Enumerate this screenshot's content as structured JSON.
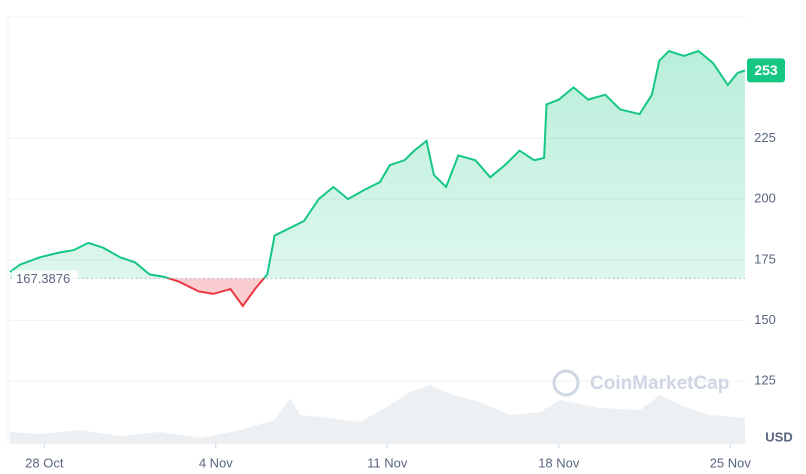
{
  "chart_data": {
    "type": "line",
    "x": [
      -1.4,
      -1.0,
      -0.2,
      0.6,
      1.2,
      1.8,
      2.4,
      3.1,
      3.7,
      4.3,
      4.9,
      5.5,
      6.3,
      6.9,
      7.6,
      8.1,
      8.6,
      9.1,
      9.4,
      10.0,
      10.6,
      11.2,
      11.8,
      12.4,
      13.1,
      13.7,
      14.1,
      14.7,
      15.1,
      15.6,
      15.9,
      16.4,
      16.9,
      17.6,
      18.2,
      18.8,
      19.4,
      20.0,
      20.4,
      20.5,
      21.0,
      21.6,
      22.2,
      22.9,
      23.5,
      24.3,
      24.8,
      25.1,
      25.5,
      26.1,
      26.7,
      27.3,
      27.9,
      28.3,
      28.6
    ],
    "series": [
      {
        "name": "USD",
        "color": "#16c784",
        "below_color": "#ea3943",
        "values": [
          170,
          173,
          176,
          178,
          179,
          182,
          180,
          176,
          174,
          169,
          168,
          166,
          162,
          161,
          163,
          156,
          163,
          169,
          185,
          188,
          191,
          200,
          205,
          200,
          204,
          207,
          214,
          216,
          220,
          224,
          210,
          205,
          218,
          216,
          209,
          214,
          220,
          216,
          217,
          239,
          241,
          246,
          241,
          243,
          237,
          235,
          243,
          257,
          261,
          259,
          261,
          256,
          247,
          252,
          253
        ]
      }
    ],
    "reference": 167.3876,
    "reference_label": "167.3876",
    "current_price": 253,
    "currency": "USD",
    "watermark": "CoinMarketCap",
    "xlim": [
      -1.4,
      28.6
    ],
    "xticks": [
      {
        "value": 0,
        "label": "28 Oct"
      },
      {
        "value": 7,
        "label": "4 Nov"
      },
      {
        "value": 14,
        "label": "11 Nov"
      },
      {
        "value": 21,
        "label": "18 Nov"
      },
      {
        "value": 28,
        "label": "25 Nov"
      }
    ],
    "ylim": [
      100,
      275
    ],
    "yticks": [
      125,
      150,
      175,
      200,
      225
    ],
    "grid": true
  }
}
